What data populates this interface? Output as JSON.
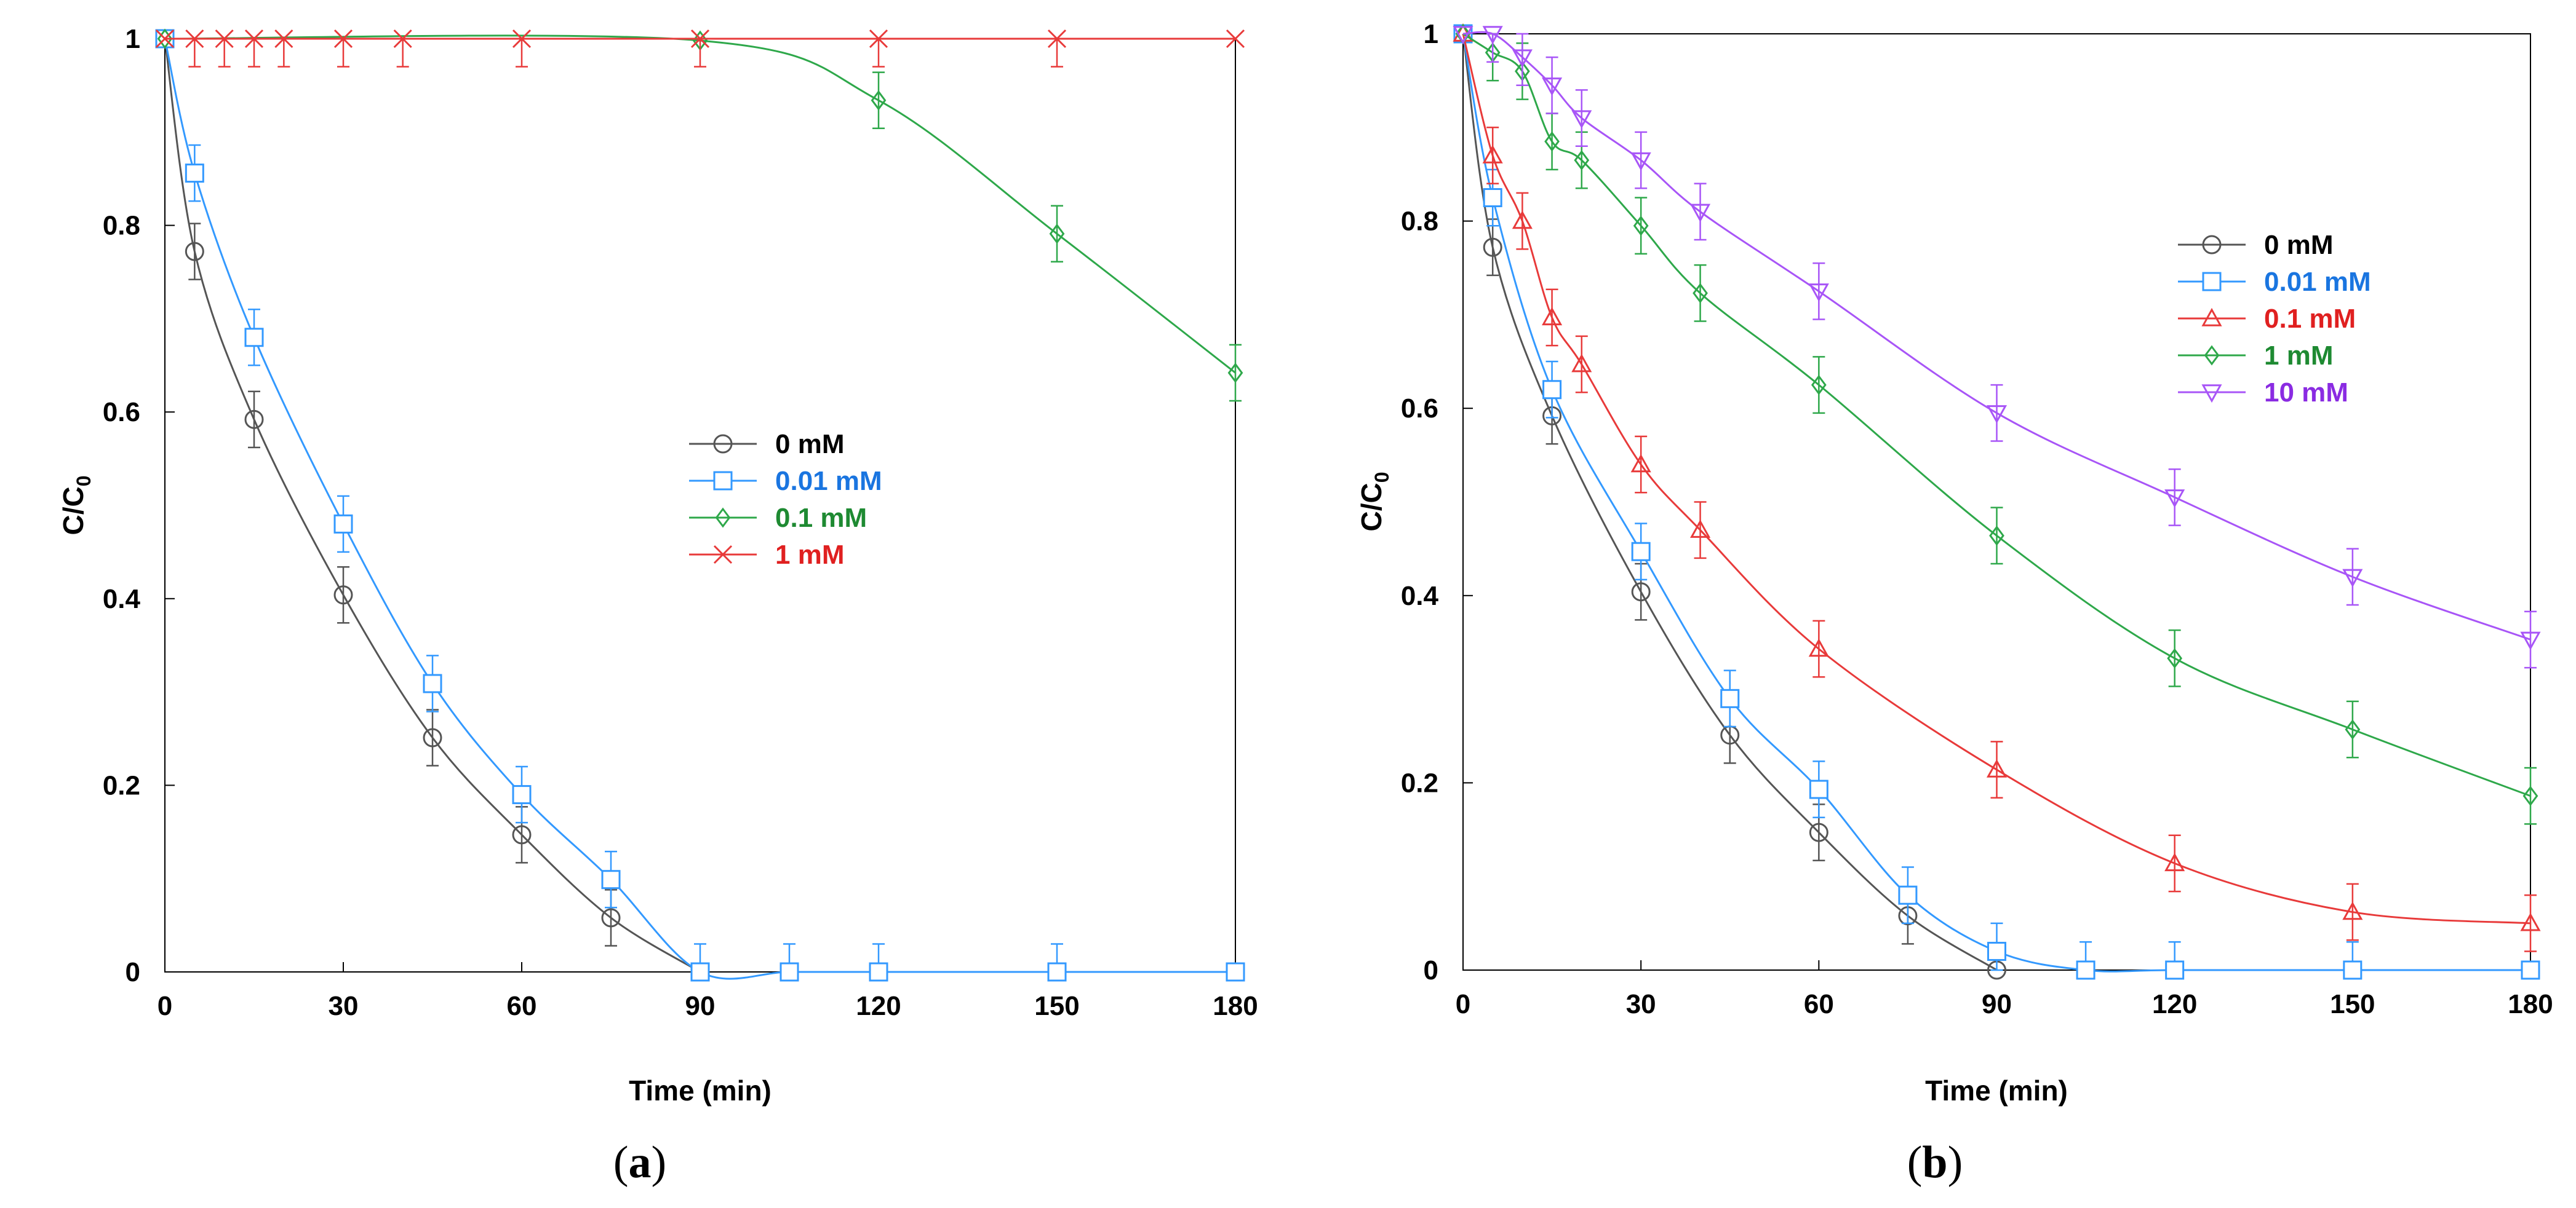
{
  "chart_data": [
    {
      "type": "line",
      "panel_label": "(a)",
      "label_open": "(",
      "label_letter": "a",
      "label_close": ")",
      "xlabel": "Time (min)",
      "ylabel_main": "C/C",
      "ylabel_sub": "0",
      "xlim": [
        0,
        180
      ],
      "ylim": [
        0,
        1
      ],
      "xticks": [
        0,
        30,
        60,
        90,
        120,
        150,
        180
      ],
      "yticks": [
        0,
        0.2,
        0.4,
        0.6,
        0.8,
        1
      ],
      "ytick_labels": [
        "0",
        "0.2",
        "0.4",
        "0.6",
        "0.8",
        "1"
      ],
      "legend_placement": "center-right",
      "series": [
        {
          "name": "0 mM",
          "color": "#555555",
          "legend_color": "#000000",
          "marker": "circle",
          "x": [
            0,
            5,
            15,
            30,
            45,
            60,
            75,
            90
          ],
          "y": [
            1,
            0.772,
            0.592,
            0.404,
            0.251,
            0.147,
            0.058,
            0
          ],
          "err": [
            0,
            0.03,
            0.03,
            0.03,
            0.03,
            0.03,
            0.03,
            0
          ]
        },
        {
          "name": "0.01 mM",
          "color": "#3399ff",
          "legend_color": "#1a75e0",
          "marker": "square",
          "x": [
            0,
            5,
            15,
            30,
            45,
            60,
            75,
            90,
            105,
            120,
            150,
            180
          ],
          "y": [
            1,
            0.856,
            0.68,
            0.48,
            0.309,
            0.19,
            0.099,
            0,
            0,
            0,
            0,
            0
          ],
          "err": [
            0,
            0.03,
            0.03,
            0.03,
            0.03,
            0.03,
            0.03,
            0.03,
            0.03,
            0.03,
            0.03,
            0
          ]
        },
        {
          "name": "0.1 mM",
          "color": "#2ea84a",
          "legend_color": "#1e8a32",
          "marker": "diamond",
          "x": [
            0,
            90,
            120,
            150,
            180
          ],
          "y": [
            1,
            0.998,
            0.934,
            0.791,
            0.642
          ],
          "err": [
            0,
            0,
            0.03,
            0.03,
            0.03
          ]
        },
        {
          "name": "1 mM",
          "color": "#e83a3a",
          "legend_color": "#e02020",
          "marker": "x",
          "x": [
            0,
            5,
            10,
            15,
            20,
            30,
            40,
            60,
            90,
            120,
            150,
            180
          ],
          "y": [
            1,
            1,
            1,
            1,
            1,
            1,
            1,
            1,
            1,
            1,
            1,
            1
          ],
          "err": [
            0,
            0.03,
            0.03,
            0.03,
            0.03,
            0.03,
            0.03,
            0.03,
            0.03,
            0.03,
            0.03,
            0
          ]
        }
      ]
    },
    {
      "type": "line",
      "panel_label": "(b)",
      "label_open": "(",
      "label_letter": "b",
      "label_close": ")",
      "xlabel": "Time (min)",
      "ylabel_main": "C/C",
      "ylabel_sub": "0",
      "xlim": [
        0,
        180
      ],
      "ylim": [
        0,
        1
      ],
      "xticks": [
        0,
        30,
        60,
        90,
        120,
        150,
        180
      ],
      "yticks": [
        0,
        0.2,
        0.4,
        0.6,
        0.8,
        1
      ],
      "ytick_labels": [
        "0",
        "0.2",
        "0.4",
        "0.6",
        "0.8",
        "1"
      ],
      "legend_placement": "top-right",
      "series": [
        {
          "name": "0 mM",
          "color": "#555555",
          "legend_color": "#000000",
          "marker": "circle",
          "x": [
            0,
            5,
            15,
            30,
            45,
            60,
            75,
            90
          ],
          "y": [
            1,
            0.772,
            0.592,
            0.404,
            0.251,
            0.147,
            0.058,
            0
          ],
          "err": [
            0,
            0.03,
            0.03,
            0.03,
            0.03,
            0.03,
            0.03,
            0
          ]
        },
        {
          "name": "0.01 mM",
          "color": "#3399ff",
          "legend_color": "#1a75e0",
          "marker": "square",
          "x": [
            0,
            5,
            15,
            30,
            45,
            60,
            75,
            90,
            105,
            120,
            150,
            180
          ],
          "y": [
            1,
            0.825,
            0.62,
            0.447,
            0.29,
            0.193,
            0.08,
            0.02,
            0,
            0,
            0,
            0
          ],
          "err": [
            0,
            0.03,
            0.03,
            0.03,
            0.03,
            0.03,
            0.03,
            0.03,
            0.03,
            0.03,
            0.03,
            0
          ]
        },
        {
          "name": "0.1 mM",
          "color": "#e83a3a",
          "legend_color": "#e02020",
          "marker": "triangle",
          "x": [
            0,
            5,
            10,
            15,
            20,
            30,
            40,
            60,
            90,
            120,
            150,
            180
          ],
          "y": [
            1,
            0.87,
            0.8,
            0.697,
            0.647,
            0.54,
            0.47,
            0.343,
            0.214,
            0.114,
            0.062,
            0.05
          ],
          "err": [
            0,
            0.03,
            0.03,
            0.03,
            0.03,
            0.03,
            0.03,
            0.03,
            0.03,
            0.03,
            0.03,
            0.03
          ]
        },
        {
          "name": "1 mM",
          "color": "#2ea84a",
          "legend_color": "#1e8a32",
          "marker": "diamond",
          "x": [
            0,
            5,
            10,
            15,
            20,
            30,
            40,
            60,
            90,
            120,
            150,
            180
          ],
          "y": [
            1,
            0.98,
            0.96,
            0.885,
            0.865,
            0.795,
            0.723,
            0.625,
            0.464,
            0.333,
            0.257,
            0.186
          ],
          "err": [
            0,
            0.03,
            0.03,
            0.03,
            0.03,
            0.03,
            0.03,
            0.03,
            0.03,
            0.03,
            0.03,
            0.03
          ]
        },
        {
          "name": "10 mM",
          "color": "#a855f7",
          "legend_color": "#8a2be2",
          "marker": "triangle-down",
          "x": [
            0,
            5,
            10,
            15,
            20,
            30,
            40,
            60,
            90,
            120,
            150,
            180
          ],
          "y": [
            1,
            1,
            0.975,
            0.945,
            0.91,
            0.865,
            0.81,
            0.725,
            0.595,
            0.505,
            0.42,
            0.353
          ],
          "err": [
            0,
            0.03,
            0.03,
            0.03,
            0.03,
            0.03,
            0.03,
            0.03,
            0.03,
            0.03,
            0.03,
            0.03
          ]
        }
      ]
    }
  ]
}
